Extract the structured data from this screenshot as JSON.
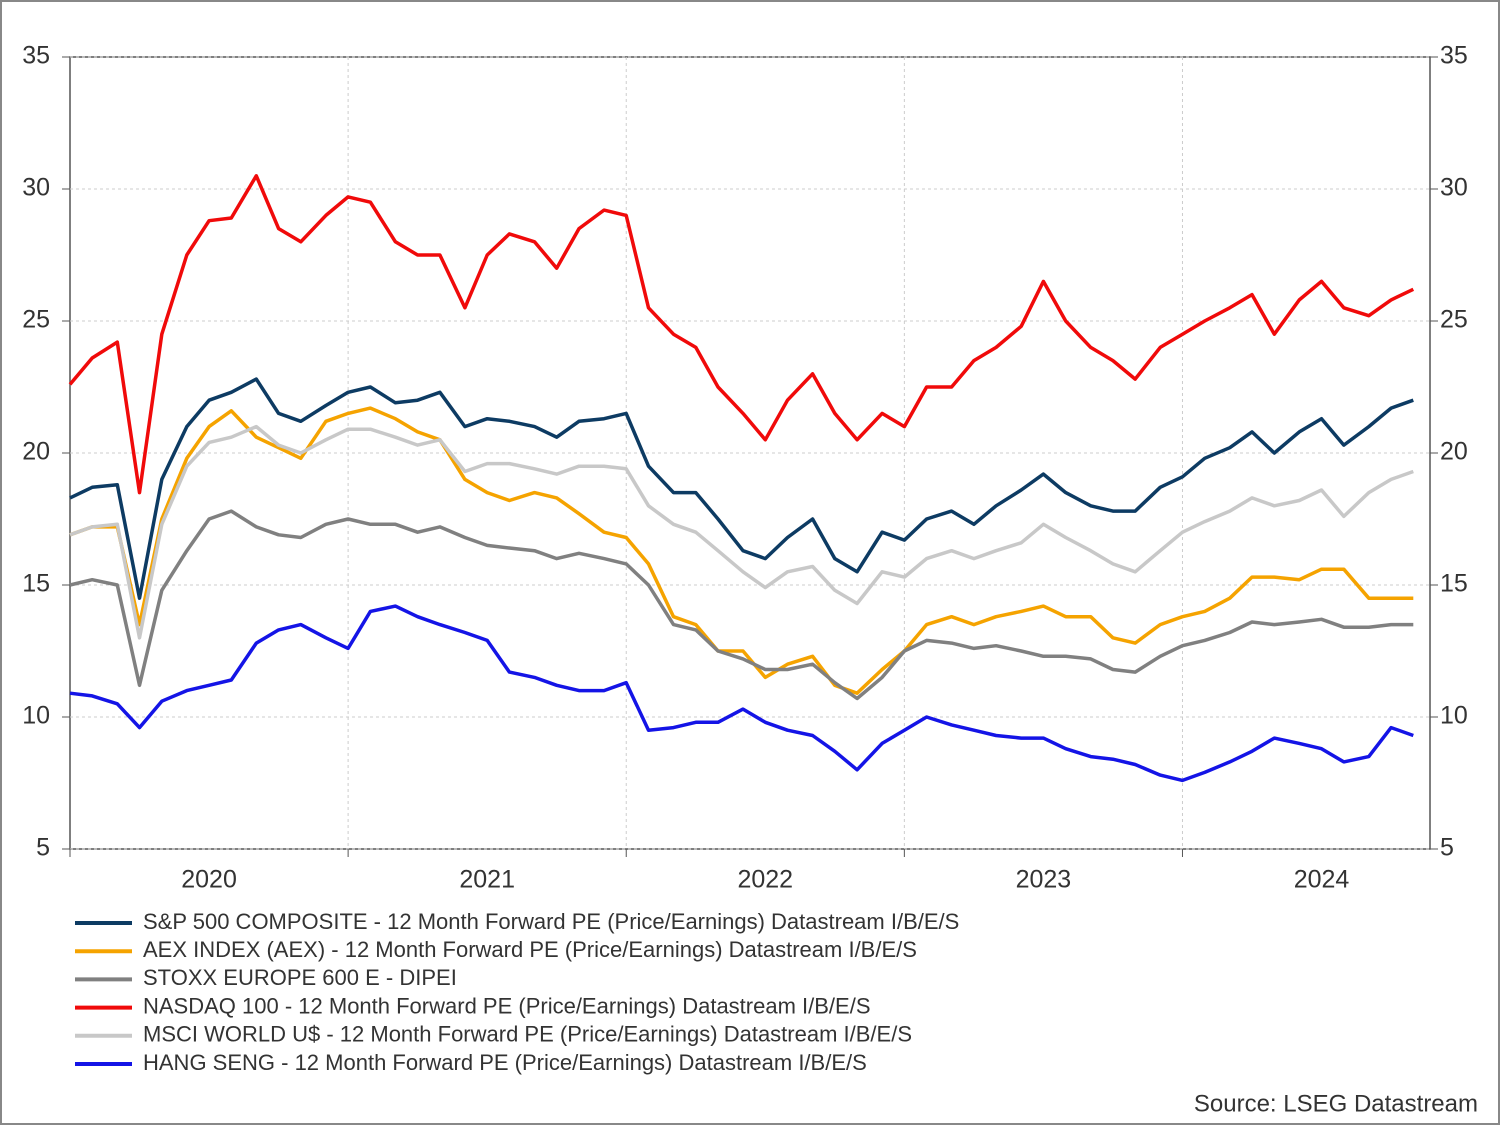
{
  "chart_data": {
    "type": "line",
    "source": "Source: LSEG Datastream",
    "x": [
      2020,
      2020.08,
      2020.17,
      2020.25,
      2020.33,
      2020.42,
      2020.5,
      2020.58,
      2020.67,
      2020.75,
      2020.83,
      2020.92,
      2021,
      2021.08,
      2021.17,
      2021.25,
      2021.33,
      2021.42,
      2021.5,
      2021.58,
      2021.67,
      2021.75,
      2021.83,
      2021.92,
      2022,
      2022.08,
      2022.17,
      2022.25,
      2022.33,
      2022.42,
      2022.5,
      2022.58,
      2022.67,
      2022.75,
      2022.83,
      2022.92,
      2023,
      2023.08,
      2023.17,
      2023.25,
      2023.33,
      2023.42,
      2023.5,
      2023.58,
      2023.67,
      2023.75,
      2023.83,
      2023.92,
      2024,
      2024.08,
      2024.17,
      2024.25,
      2024.33,
      2024.42,
      2024.5,
      2024.58,
      2024.67,
      2024.75,
      2024.83
    ],
    "xlim": [
      2020,
      2024.89
    ],
    "xticks": [
      2020,
      2021,
      2022,
      2023,
      2024
    ],
    "ylim": [
      5,
      35
    ],
    "yticks": [
      5,
      10,
      15,
      20,
      25,
      30,
      35
    ],
    "grid": true,
    "series": [
      {
        "name": "S&P 500 COMPOSITE - 12 Month Forward PE (Price/Earnings) Datastream I/B/E/S",
        "color": "#0d3b63",
        "values": [
          18.3,
          18.7,
          18.8,
          14.5,
          19,
          21,
          22,
          22.3,
          22.8,
          21.5,
          21.2,
          21.8,
          22.3,
          22.5,
          21.9,
          22,
          22.3,
          21,
          21.3,
          21.2,
          21,
          20.6,
          21.2,
          21.3,
          21.5,
          19.5,
          18.5,
          18.5,
          17.5,
          16.3,
          16,
          16.8,
          17.5,
          16,
          15.5,
          17,
          16.7,
          17.5,
          17.8,
          17.3,
          18,
          18.6,
          19.2,
          18.5,
          18,
          17.8,
          17.8,
          18.7,
          19.1,
          19.8,
          20.2,
          20.8,
          20,
          20.8,
          21.3,
          20.3,
          21,
          21.7,
          22
        ]
      },
      {
        "name": "AEX INDEX (AEX) - 12 Month Forward PE (Price/Earnings) Datastream I/B/E/S",
        "color": "#f5a300",
        "values": [
          16.9,
          17.2,
          17.2,
          13.5,
          17.5,
          19.8,
          21,
          21.6,
          20.6,
          20.2,
          19.8,
          21.2,
          21.5,
          21.7,
          21.3,
          20.8,
          20.5,
          19,
          18.5,
          18.2,
          18.5,
          18.3,
          17.7,
          17,
          16.8,
          15.8,
          13.8,
          13.5,
          12.5,
          12.5,
          11.5,
          12,
          12.3,
          11.2,
          10.9,
          11.8,
          12.5,
          13.5,
          13.8,
          13.5,
          13.8,
          14,
          14.2,
          13.8,
          13.8,
          13,
          12.8,
          13.5,
          13.8,
          14,
          14.5,
          15.3,
          15.3,
          15.2,
          15.6,
          15.6,
          14.5,
          14.5,
          14.5
        ]
      },
      {
        "name": "STOXX EUROPE 600 E - DIPEI",
        "color": "#808080",
        "values": [
          15,
          15.2,
          15,
          11.2,
          14.8,
          16.3,
          17.5,
          17.8,
          17.2,
          16.9,
          16.8,
          17.3,
          17.5,
          17.3,
          17.3,
          17,
          17.2,
          16.8,
          16.5,
          16.4,
          16.3,
          16,
          16.2,
          16,
          15.8,
          15,
          13.5,
          13.3,
          12.5,
          12.2,
          11.8,
          11.8,
          12,
          11.3,
          10.7,
          11.5,
          12.5,
          12.9,
          12.8,
          12.6,
          12.7,
          12.5,
          12.3,
          12.3,
          12.2,
          11.8,
          11.7,
          12.3,
          12.7,
          12.9,
          13.2,
          13.6,
          13.5,
          13.6,
          13.7,
          13.4,
          13.4,
          13.5,
          13.5
        ]
      },
      {
        "name": "NASDAQ 100 - 12 Month Forward PE (Price/Earnings) Datastream I/B/E/S",
        "color": "#f00a0a",
        "values": [
          22.6,
          23.6,
          24.2,
          18.5,
          24.5,
          27.5,
          28.8,
          28.9,
          30.5,
          28.5,
          28,
          29,
          29.7,
          29.5,
          28,
          27.5,
          27.5,
          25.5,
          27.5,
          28.3,
          28,
          27,
          28.5,
          29.2,
          29,
          25.5,
          24.5,
          24,
          22.5,
          21.5,
          20.5,
          22,
          23,
          21.5,
          20.5,
          21.5,
          21,
          22.5,
          22.5,
          23.5,
          24,
          24.8,
          26.5,
          25,
          24,
          23.5,
          22.8,
          24,
          24.5,
          25,
          25.5,
          26,
          24.5,
          25.8,
          26.5,
          25.5,
          25.2,
          25.8,
          26.2
        ]
      },
      {
        "name": "MSCI WORLD U$ - 12 Month Forward PE (Price/Earnings) Datastream I/B/E/S",
        "color": "#c8c8c8",
        "values": [
          16.9,
          17.2,
          17.3,
          13,
          17.3,
          19.5,
          20.4,
          20.6,
          21,
          20.3,
          20,
          20.5,
          20.9,
          20.9,
          20.6,
          20.3,
          20.5,
          19.3,
          19.6,
          19.6,
          19.4,
          19.2,
          19.5,
          19.5,
          19.4,
          18,
          17.3,
          17,
          16.3,
          15.5,
          14.9,
          15.5,
          15.7,
          14.8,
          14.3,
          15.5,
          15.3,
          16,
          16.3,
          16,
          16.3,
          16.6,
          17.3,
          16.8,
          16.3,
          15.8,
          15.5,
          16.3,
          17,
          17.4,
          17.8,
          18.3,
          18,
          18.2,
          18.6,
          17.6,
          18.5,
          19,
          19.3
        ]
      },
      {
        "name": "HANG SENG - 12 Month Forward PE (Price/Earnings) Datastream I/B/E/S",
        "color": "#1414e6",
        "values": [
          10.9,
          10.8,
          10.5,
          9.6,
          10.6,
          11,
          11.2,
          11.4,
          12.8,
          13.3,
          13.5,
          13,
          12.6,
          14,
          14.2,
          13.8,
          13.5,
          13.2,
          12.9,
          11.7,
          11.5,
          11.2,
          11,
          11,
          11.3,
          9.5,
          9.6,
          9.8,
          9.8,
          10.3,
          9.8,
          9.5,
          9.3,
          8.7,
          8,
          9,
          9.5,
          10,
          9.7,
          9.5,
          9.3,
          9.2,
          9.2,
          8.8,
          8.5,
          8.4,
          8.2,
          7.8,
          7.6,
          7.9,
          8.3,
          8.7,
          9.2,
          9,
          8.8,
          8.3,
          8.5,
          9.6,
          9.3
        ]
      }
    ]
  }
}
